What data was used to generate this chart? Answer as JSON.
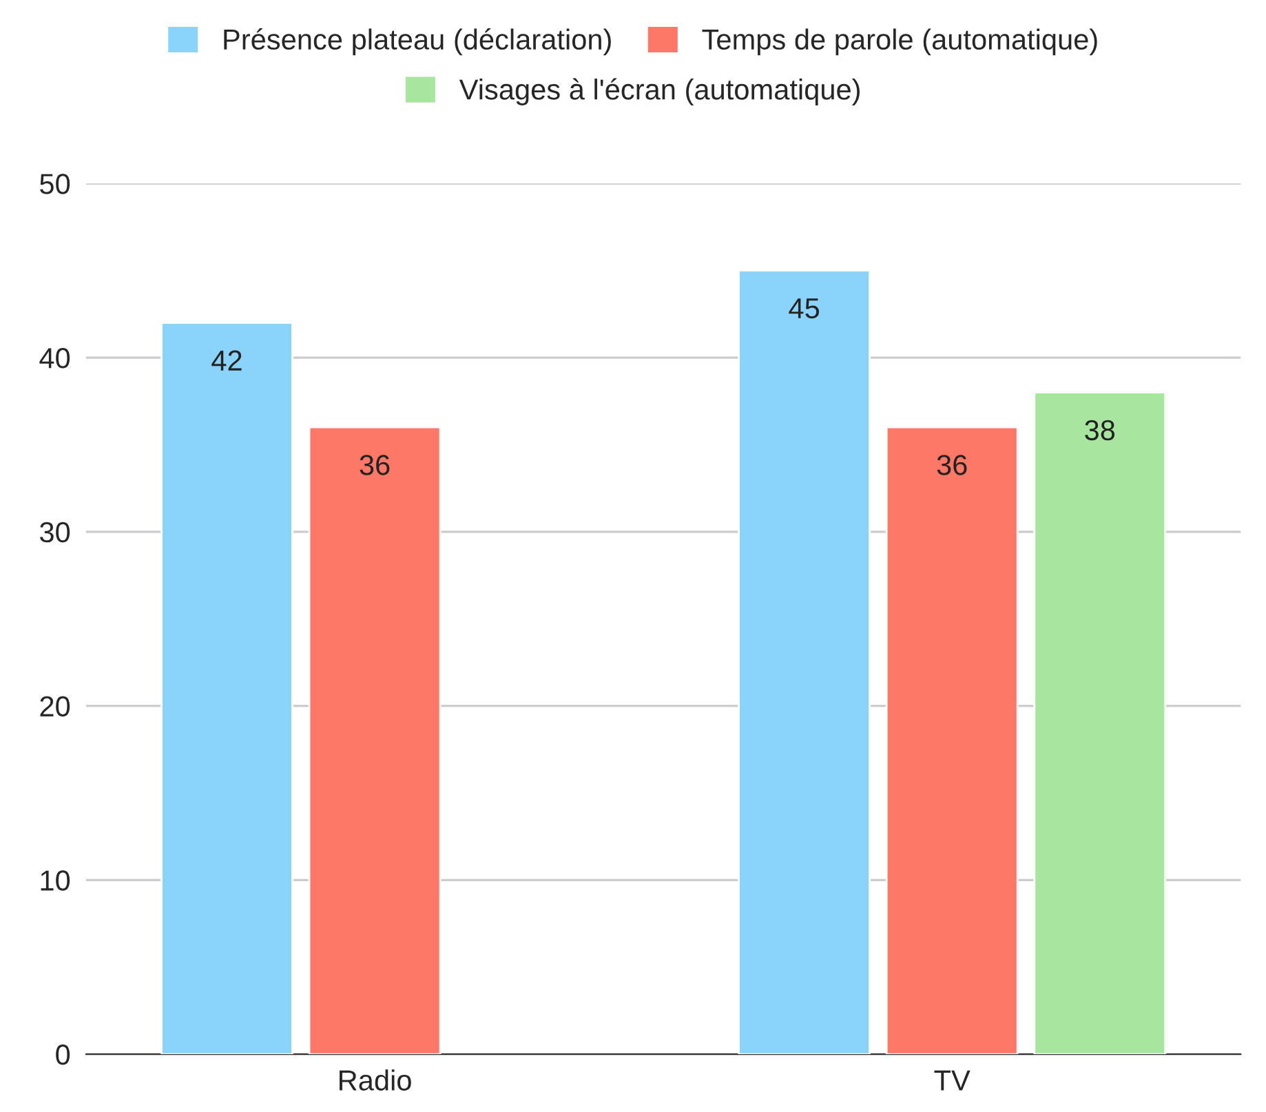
{
  "chart_data": {
    "type": "bar",
    "categories": [
      "Radio",
      "TV"
    ],
    "series": [
      {
        "name": "Présence plateau (déclaration)",
        "color": "#8ad3fb",
        "values": [
          42,
          45
        ]
      },
      {
        "name": "Temps de parole (automatique)",
        "color": "#fe7867",
        "values": [
          36,
          36
        ]
      },
      {
        "name": "Visages à l'écran (automatique)",
        "color": "#a8e6a0",
        "values": [
          null,
          38
        ]
      }
    ],
    "ylim": [
      0,
      50
    ],
    "yticks": [
      0,
      10,
      20,
      30,
      40,
      50
    ],
    "grid": "y",
    "legend": "top",
    "data_labels": true
  }
}
